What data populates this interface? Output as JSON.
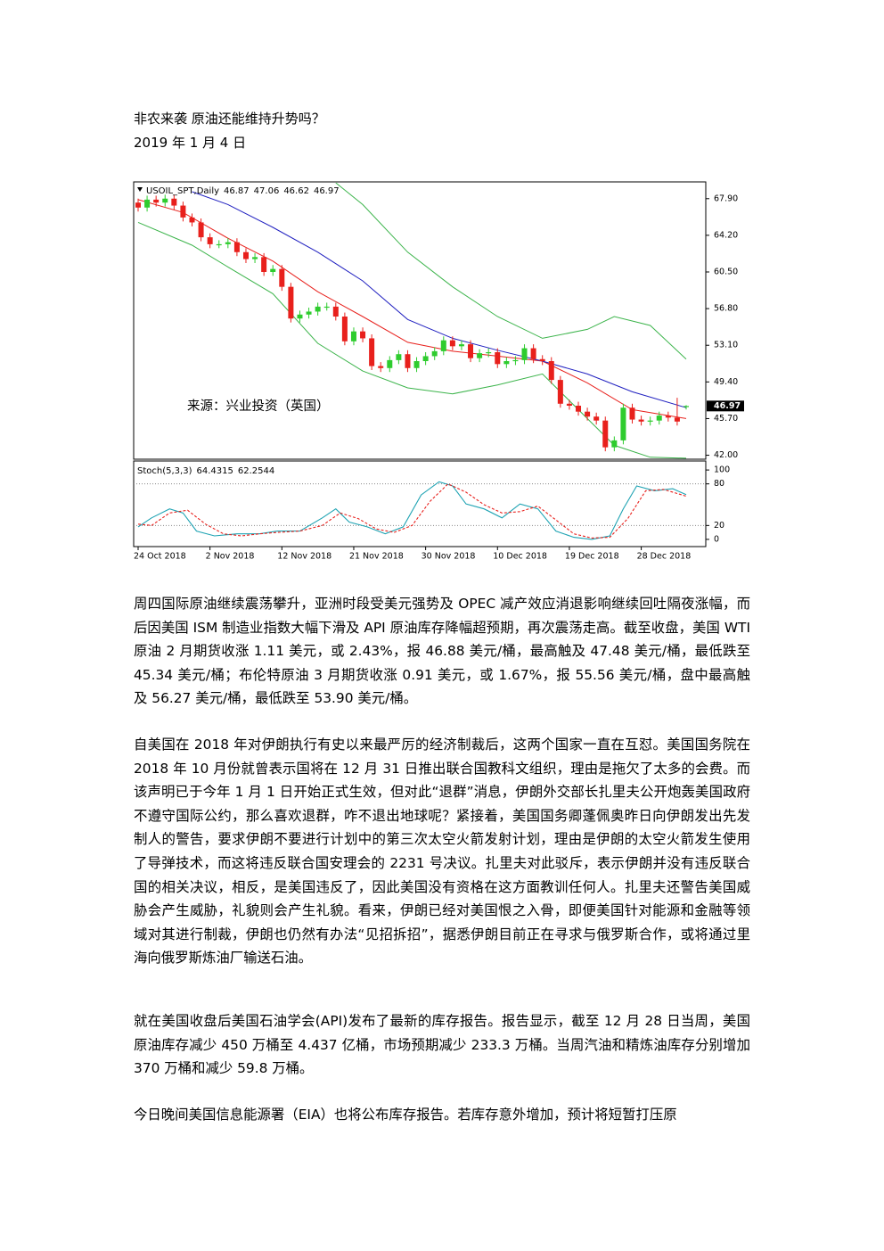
{
  "title": "非农来袭 原油还能维持升势吗？",
  "date": "2019 年 1 月 4 日",
  "chart_data": [
    {
      "type": "candlestick",
      "title": "USOIL_SPT,Daily",
      "annotation": "来源：兴业投资（英国）",
      "categories": [
        "24 Oct 2018",
        null,
        null,
        null,
        null,
        null,
        null,
        null,
        "2 Nov 2018",
        null,
        null,
        null,
        null,
        null,
        null,
        null,
        "12 Nov 2018",
        null,
        null,
        null,
        null,
        null,
        null,
        null,
        "21 Nov 2018",
        null,
        null,
        null,
        null,
        null,
        null,
        null,
        "30 Nov 2018",
        null,
        null,
        null,
        null,
        null,
        null,
        null,
        "10 Dec 2018",
        null,
        null,
        null,
        null,
        null,
        null,
        null,
        "19 Dec 2018",
        null,
        null,
        null,
        null,
        null,
        null,
        null,
        "28 Dec 2018",
        null,
        null,
        null,
        null,
        null
      ],
      "open": [
        67.5,
        67.0,
        67.8,
        67.5,
        67.9,
        67.2,
        66.0,
        65.5,
        64.0,
        63.3,
        63.3,
        63.5,
        62.5,
        61.8,
        62.0,
        60.5,
        60.8,
        59.0,
        55.8,
        56.2,
        56.5,
        57.0,
        57.0,
        56.0,
        53.5,
        54.5,
        53.8,
        51.0,
        50.8,
        51.6,
        52.2,
        50.8,
        51.5,
        52.0,
        52.5,
        53.6,
        53.0,
        53.2,
        51.8,
        52.3,
        52.4,
        51.2,
        51.5,
        51.6,
        52.8,
        51.7,
        51.5,
        49.6,
        47.2,
        47.0,
        46.4,
        45.9,
        45.5,
        42.8,
        43.5,
        46.8,
        45.6,
        45.4,
        45.5,
        46.0,
        45.8,
        46.87
      ],
      "high": [
        67.9,
        68.2,
        68.2,
        68.3,
        68.3,
        67.6,
        66.4,
        65.9,
        64.4,
        63.7,
        63.9,
        63.9,
        62.9,
        62.4,
        62.4,
        61.2,
        61.2,
        59.4,
        56.6,
        56.9,
        57.4,
        57.4,
        57.4,
        56.4,
        54.9,
        54.9,
        54.2,
        51.4,
        52.0,
        52.6,
        52.6,
        51.9,
        52.4,
        52.9,
        54.0,
        54.0,
        53.6,
        53.6,
        52.7,
        52.8,
        52.8,
        51.9,
        52.0,
        53.2,
        53.2,
        52.1,
        51.9,
        50.0,
        47.6,
        47.4,
        46.8,
        46.3,
        45.9,
        43.9,
        47.2,
        47.2,
        46.0,
        45.9,
        46.4,
        46.4,
        47.8,
        47.06
      ],
      "low": [
        66.6,
        66.6,
        67.1,
        67.1,
        66.8,
        65.6,
        65.1,
        63.6,
        62.9,
        62.9,
        62.9,
        62.1,
        61.4,
        61.4,
        60.1,
        60.1,
        58.6,
        55.4,
        55.4,
        55.8,
        56.1,
        56.6,
        55.6,
        53.1,
        53.1,
        53.4,
        50.6,
        50.4,
        50.4,
        51.2,
        50.4,
        50.4,
        51.1,
        51.6,
        52.1,
        52.6,
        52.6,
        51.4,
        51.4,
        51.9,
        50.8,
        50.8,
        51.1,
        51.2,
        51.3,
        51.1,
        49.2,
        46.8,
        46.6,
        46.0,
        45.5,
        45.1,
        42.4,
        42.4,
        43.1,
        45.2,
        45.0,
        45.0,
        45.1,
        45.4,
        45.0,
        46.62
      ],
      "close": [
        67.0,
        67.8,
        67.5,
        67.9,
        67.2,
        66.0,
        65.5,
        64.0,
        63.3,
        63.3,
        63.5,
        62.5,
        61.8,
        62.0,
        60.5,
        60.8,
        59.0,
        55.8,
        56.2,
        56.5,
        57.0,
        57.0,
        56.0,
        53.5,
        54.5,
        53.8,
        51.0,
        50.8,
        51.6,
        52.2,
        50.8,
        51.5,
        52.0,
        52.5,
        53.6,
        53.0,
        53.2,
        51.8,
        52.3,
        52.4,
        51.2,
        51.5,
        51.6,
        52.8,
        51.7,
        51.5,
        49.6,
        47.2,
        47.0,
        46.4,
        45.9,
        45.5,
        42.8,
        43.5,
        46.8,
        45.6,
        45.4,
        45.5,
        46.0,
        45.8,
        45.4,
        46.97
      ],
      "up_color": "#2ecc2e",
      "down_color": "#e8201c",
      "lines": [
        {
          "color": "#e8201c",
          "x": [
            0,
            5,
            10,
            15,
            20,
            25,
            30,
            35,
            40,
            45,
            50,
            55,
            61
          ],
          "values": [
            67.8,
            66.5,
            63.9,
            61.6,
            58.5,
            56.0,
            53.4,
            52.5,
            52.0,
            51.5,
            49.3,
            46.6,
            45.7
          ]
        },
        {
          "color": "#2020c0",
          "x": [
            6,
            10,
            15,
            20,
            25,
            30,
            35,
            40,
            45,
            50,
            55,
            61
          ],
          "values": [
            68.6,
            67.3,
            65.0,
            62.5,
            59.6,
            55.7,
            53.8,
            52.6,
            51.5,
            50.2,
            48.4,
            46.8
          ]
        },
        {
          "color": "#3cb44b",
          "x": [
            22,
            25,
            30,
            35,
            40,
            45,
            50,
            53,
            57,
            61
          ],
          "values": [
            69.5,
            67.3,
            62.5,
            59.0,
            56.0,
            53.8,
            54.7,
            56.0,
            55.1,
            51.7
          ]
        },
        {
          "color": "#3cb44b",
          "x": [
            0,
            6,
            10,
            15,
            20,
            25,
            30,
            35,
            40,
            45,
            49,
            53,
            57,
            61
          ],
          "values": [
            65.5,
            63.2,
            61.0,
            58.3,
            53.3,
            50.5,
            48.8,
            48.2,
            49.1,
            50.2,
            46.6,
            43.0,
            41.8,
            41.7
          ]
        }
      ],
      "ylim": [
        41.6,
        69.5
      ],
      "yticks": [
        {
          "value": 67.9,
          "label": "67.90"
        },
        {
          "value": 64.2,
          "label": "64.20"
        },
        {
          "value": 60.5,
          "label": "60.50"
        },
        {
          "value": 56.8,
          "label": "56.80"
        },
        {
          "value": 53.1,
          "label": "53.10"
        },
        {
          "value": 49.4,
          "label": "49.40"
        },
        {
          "value": 45.7,
          "label": "45.70"
        },
        {
          "value": 42.0,
          "label": "42.00"
        }
      ]
    },
    {
      "type": "line",
      "title": "Stoch(5,3,3)",
      "series": [
        {
          "color": "#1fa3b3",
          "dashed": false,
          "x": [
            0,
            1.5,
            3.5,
            5,
            6.5,
            8.5,
            11,
            13.5,
            15.5,
            18,
            20.5,
            22,
            23.5,
            25.5,
            27.5,
            29.5,
            31.5,
            33.5,
            35,
            36.5,
            38.5,
            40.5,
            42.5,
            44.5,
            46.5,
            48.5,
            50.5,
            52.5,
            54,
            55.5,
            57.5,
            59.5,
            61
          ],
          "values": [
            18,
            31,
            44,
            38,
            12,
            5,
            8,
            8,
            12,
            12,
            31,
            44,
            25,
            18,
            8,
            18,
            64,
            83,
            77,
            51,
            44,
            31,
            51,
            44,
            12,
            3,
            0,
            5,
            44,
            77,
            70,
            73,
            64.4315
          ]
        },
        {
          "color": "#e8201c",
          "dashed": true,
          "x": [
            0,
            1.5,
            3.5,
            5.5,
            7.5,
            9.5,
            11.5,
            13.5,
            15.5,
            18,
            20.5,
            22.5,
            24.5,
            26.5,
            28.5,
            30.5,
            32.5,
            34.5,
            36.5,
            38.5,
            40.5,
            42.5,
            44.5,
            46.5,
            48.5,
            50.5,
            52.5,
            54.5,
            56.5,
            58.5,
            61
          ],
          "values": [
            22,
            20,
            38,
            42,
            22,
            8,
            5,
            8,
            10,
            12,
            20,
            38,
            30,
            15,
            10,
            20,
            55,
            80,
            68,
            50,
            38,
            40,
            48,
            28,
            8,
            2,
            3,
            30,
            70,
            72,
            62.2544
          ]
        }
      ],
      "levels": [
        80,
        20
      ],
      "ylim": [
        -10.4,
        111.7
      ],
      "yticks": [
        100,
        80,
        20,
        0
      ]
    }
  ],
  "paragraphs": [
    "周四国际原油继续震荡攀升，亚洲时段受美元强势及 OPEC 减产效应消退影响继续回吐隔夜涨幅，而后因美国 ISM 制造业指数大幅下滑及 API 原油库存降幅超预期，再次震荡走高。截至收盘，美国 WTI 原油 2 月期货收涨 1.11 美元，或 2.43%，报 46.88 美元/桶，最高触及 47.48 美元/桶，最低跌至 45.34 美元/桶；布伦特原油 3 月期货收涨 0.91 美元，或 1.67%，报 55.56 美元/桶，盘中最高触及 56.27 美元/桶，最低跌至 53.90 美元/桶。",
    "自美国在 2018 年对伊朗执行有史以来最严厉的经济制裁后，这两个国家一直在互怼。美国国务院在 2018 年 10 月份就曾表示国将在 12 月 31 日推出联合国教科文组织，理由是拖欠了太多的会费。而该声明已于今年 1 月 1 日开始正式生效，但对此“退群”消息，伊朗外交部长扎里夫公开炮轰美国政府不遵守国际公约，那么喜欢退群，咋不退出地球呢？紧接着，美国国务卿蓬佩奥昨日向伊朗发出先发制人的警告，要求伊朗不要进行计划中的第三次太空火箭发射计划，理由是伊朗的太空火箭发生使用了导弹技术，而这将违反联合国安理会的 2231 号决议。扎里夫对此驳斥，表示伊朗并没有违反联合国的相关决议，相反，是美国违反了，因此美国没有资格在这方面教训任何人。扎里夫还警告美国威胁会产生威胁，礼貌则会产生礼貌。看来，伊朗已经对美国恨之入骨，即便美国针对能源和金融等领域对其进行制裁，伊朗也仍然有办法“见招拆招”，据悉伊朗目前正在寻求与俄罗斯合作，或将通过里海向俄罗斯炼油厂输送石油。",
    "就在美国收盘后美国石油学会(API)发布了最新的库存报告。报告显示，截至 12 月 28 日当周，美国原油库存减少 450 万桶至 4.437 亿桶，市场预期减少 233.3 万桶。当周汽油和精炼油库存分别增加 370 万桶和减少 59.8 万桶。",
    "今日晚间美国信息能源署（EIA）也将公布库存报告。若库存意外增加，预计将短暂打压原"
  ]
}
